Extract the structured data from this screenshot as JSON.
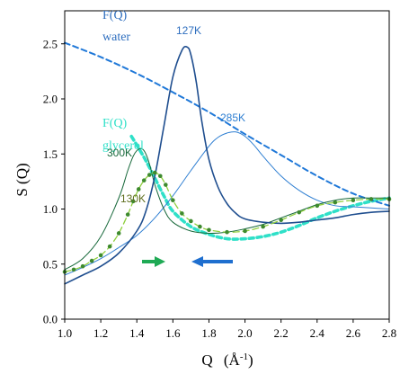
{
  "chart_data": {
    "type": "line",
    "title": "",
    "xlabel": "Q",
    "xlabel_unit_base": "(Å",
    "xlabel_unit_sup": "-1",
    "xlabel_unit_close": ")",
    "ylabel": "S (Q)",
    "xlim": [
      1.0,
      2.8
    ],
    "ylim": [
      0.0,
      2.8
    ],
    "xticks": [
      "1.0",
      "1.2",
      "1.4",
      "1.6",
      "1.8",
      "2.0",
      "2.2",
      "2.4",
      "2.6",
      "2.8"
    ],
    "yticks": [
      "0.0",
      "0.5",
      "1.0",
      "1.5",
      "2.0",
      "2.5"
    ],
    "grid": false,
    "legend": "none",
    "colors": {
      "water_dark": "#1f4e8f",
      "water_light": "#2f7fd2",
      "water_dashed": "#1f78d8",
      "glycerol_dark": "#17683a",
      "glycerol_dots": "#3e8a2e",
      "glycerol_dashed": "#2fe0c8",
      "arrow_green": "#1faa55",
      "arrow_blue": "#1f6fcf"
    },
    "series": [
      {
        "key": "water_127K",
        "x": [
          1.0,
          1.1,
          1.2,
          1.3,
          1.4,
          1.45,
          1.5,
          1.55,
          1.6,
          1.65,
          1.68,
          1.7,
          1.73,
          1.76,
          1.8,
          1.85,
          1.9,
          1.95,
          2.0,
          2.1,
          2.2,
          2.3,
          2.4,
          2.5,
          2.6,
          2.7,
          2.8
        ],
        "y": [
          0.32,
          0.4,
          0.48,
          0.6,
          0.8,
          0.98,
          1.3,
          1.75,
          2.2,
          2.44,
          2.47,
          2.4,
          2.15,
          1.8,
          1.45,
          1.2,
          1.05,
          0.96,
          0.91,
          0.88,
          0.87,
          0.88,
          0.9,
          0.92,
          0.95,
          0.97,
          0.98
        ]
      },
      {
        "key": "water_285K",
        "x": [
          1.0,
          1.1,
          1.2,
          1.3,
          1.4,
          1.5,
          1.6,
          1.7,
          1.8,
          1.85,
          1.9,
          1.95,
          2.0,
          2.05,
          2.1,
          2.2,
          2.3,
          2.4,
          2.5,
          2.6,
          2.7,
          2.8
        ],
        "y": [
          0.4,
          0.47,
          0.55,
          0.65,
          0.76,
          0.92,
          1.12,
          1.35,
          1.57,
          1.65,
          1.69,
          1.7,
          1.66,
          1.58,
          1.48,
          1.3,
          1.17,
          1.08,
          1.03,
          1.02,
          1.01,
          1.0
        ]
      },
      {
        "key": "water_FQ",
        "x": [
          1.0,
          1.2,
          1.4,
          1.6,
          1.8,
          2.0,
          2.2,
          2.4,
          2.6,
          2.8
        ],
        "y": [
          2.51,
          2.38,
          2.23,
          2.06,
          1.88,
          1.68,
          1.49,
          1.3,
          1.14,
          1.03
        ]
      },
      {
        "key": "glycerol_300K",
        "x": [
          1.0,
          1.1,
          1.2,
          1.3,
          1.35,
          1.38,
          1.4,
          1.42,
          1.44,
          1.46,
          1.48,
          1.5,
          1.55,
          1.6,
          1.7,
          1.8,
          1.9,
          2.0,
          2.1,
          2.2,
          2.3,
          2.4,
          2.5,
          2.6,
          2.7,
          2.8
        ],
        "y": [
          0.45,
          0.55,
          0.75,
          1.1,
          1.35,
          1.48,
          1.53,
          1.55,
          1.53,
          1.46,
          1.35,
          1.22,
          1.0,
          0.88,
          0.8,
          0.78,
          0.79,
          0.82,
          0.86,
          0.92,
          0.98,
          1.04,
          1.08,
          1.1,
          1.1,
          1.1
        ]
      },
      {
        "key": "glycerol_130K",
        "x": [
          1.0,
          1.05,
          1.1,
          1.15,
          1.2,
          1.25,
          1.3,
          1.35,
          1.38,
          1.41,
          1.44,
          1.47,
          1.5,
          1.53,
          1.56,
          1.6,
          1.65,
          1.7,
          1.75,
          1.8,
          1.9,
          2.0,
          2.1,
          2.2,
          2.3,
          2.4,
          2.5,
          2.6,
          2.7,
          2.8
        ],
        "y": [
          0.43,
          0.45,
          0.48,
          0.53,
          0.58,
          0.66,
          0.78,
          0.95,
          1.07,
          1.18,
          1.26,
          1.31,
          1.33,
          1.3,
          1.22,
          1.08,
          0.96,
          0.89,
          0.84,
          0.81,
          0.79,
          0.8,
          0.84,
          0.9,
          0.97,
          1.03,
          1.06,
          1.08,
          1.09,
          1.09
        ]
      },
      {
        "key": "glycerol_FQ",
        "x": [
          1.37,
          1.4,
          1.45,
          1.5,
          1.55,
          1.6,
          1.7,
          1.8,
          1.9,
          2.0,
          2.1,
          2.2,
          2.3,
          2.4,
          2.5,
          2.6,
          2.7,
          2.8
        ],
        "y": [
          1.66,
          1.58,
          1.44,
          1.28,
          1.12,
          0.98,
          0.84,
          0.77,
          0.73,
          0.73,
          0.75,
          0.79,
          0.85,
          0.92,
          0.98,
          1.03,
          1.07,
          1.1
        ]
      }
    ],
    "annotations": {
      "fq_water_1": "F(Q)",
      "fq_water_2": "water",
      "fq_gly_1": "F(Q)",
      "fq_gly_2": "glycerol",
      "t127": "127K",
      "t285": "285K",
      "t300": "300K",
      "t130": "130K"
    }
  }
}
